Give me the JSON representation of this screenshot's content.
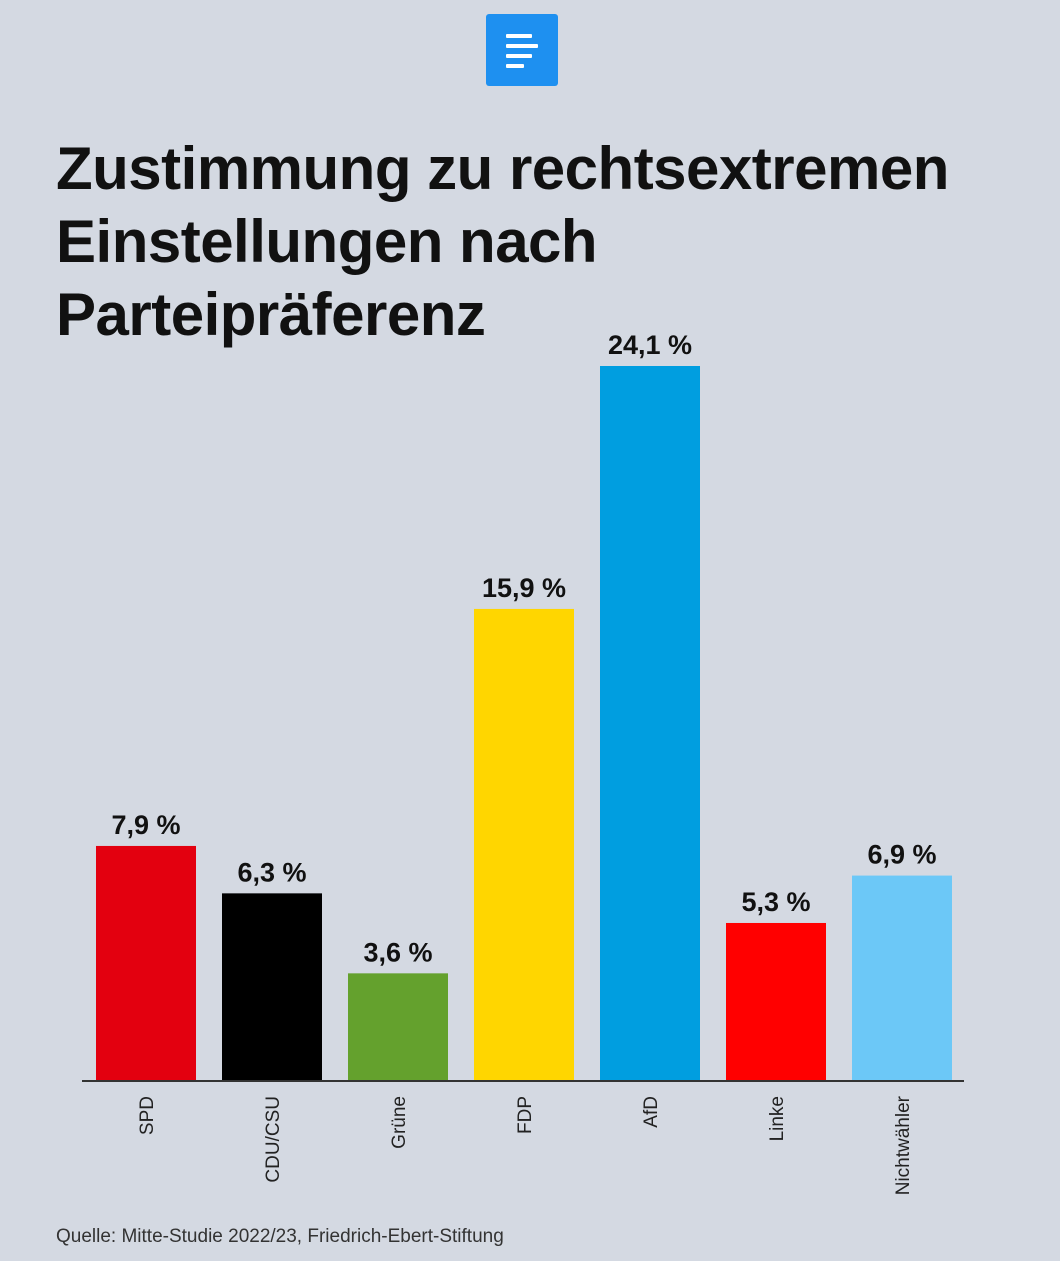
{
  "brand": {
    "icon": "document-lines-icon",
    "color": "#1e90f0"
  },
  "chart_data": {
    "type": "bar",
    "title": "Zustimmung zu rechtsextremen\nEinstellungen nach\nParteipräferenz",
    "categories": [
      "SPD",
      "CDU/CSU",
      "Grüne",
      "FDP",
      "AfD",
      "Linke",
      "Nichtwähler"
    ],
    "values": [
      7.9,
      6.3,
      3.6,
      15.9,
      24.1,
      5.3,
      6.9
    ],
    "value_labels": [
      "7,9 %",
      "6,3 %",
      "3,6 %",
      "15,9 %",
      "24,1 %",
      "5,3 %",
      "6,9 %"
    ],
    "colors": [
      "#e3000f",
      "#000000",
      "#64a12d",
      "#ffd600",
      "#009ee0",
      "#ff0000",
      "#6cc8f7"
    ],
    "ylim": [
      0,
      24.1
    ],
    "xlabel": "",
    "ylabel": "",
    "grid": false
  },
  "source": "Quelle: Mitte-Studie 2022/23, Friedrich-Ebert-Stiftung"
}
